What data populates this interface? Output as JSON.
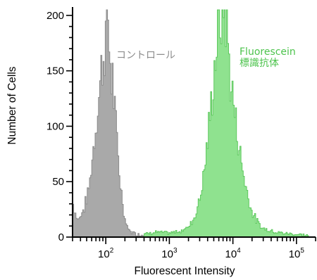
{
  "chart_data": {
    "type": "area",
    "xlabel": "Fluorescent Intensity",
    "ylabel": "Number of Cells",
    "x_scale": "log",
    "xlim": [
      30,
      200000
    ],
    "ylim": [
      0,
      205
    ],
    "y_ticks": [
      {
        "value": 0,
        "label": "0"
      },
      {
        "value": 50,
        "label": "50"
      },
      {
        "value": 100,
        "label": "100"
      },
      {
        "value": 150,
        "label": "150"
      },
      {
        "value": 200,
        "label": "200"
      }
    ],
    "x_ticks": [
      {
        "value": 100,
        "base": "10",
        "exp": "2"
      },
      {
        "value": 1000,
        "base": "10",
        "exp": "3"
      },
      {
        "value": 10000,
        "base": "10",
        "exp": "4"
      },
      {
        "value": 100000,
        "base": "10",
        "exp": "5"
      }
    ],
    "grid": false,
    "series": [
      {
        "label_lines": [
          "コントロール"
        ],
        "color": "#a9a9a9",
        "stroke": "#8c8c8c",
        "x": [
          30,
          35,
          40,
          45,
          50,
          55,
          60,
          65,
          70,
          75,
          80,
          85,
          90,
          95,
          100,
          105,
          110,
          115,
          120,
          125,
          130,
          140,
          150,
          160,
          170,
          180,
          190,
          200,
          220,
          250,
          300,
          400,
          600
        ],
        "y": [
          28,
          14,
          18,
          25,
          35,
          48,
          70,
          88,
          105,
          122,
          135,
          155,
          160,
          175,
          185,
          210,
          170,
          160,
          140,
          145,
          125,
          100,
          80,
          58,
          42,
          30,
          20,
          12,
          6,
          3,
          1,
          0,
          0
        ]
      },
      {
        "label_lines": [
          "Fluorescein",
          "標識抗体"
        ],
        "color": "#8fe28f",
        "stroke": "#5fc95f",
        "x": [
          400,
          600,
          1000,
          1500,
          2000,
          2500,
          3000,
          3500,
          4000,
          4500,
          5000,
          5500,
          6000,
          6500,
          7000,
          7500,
          8000,
          8500,
          9000,
          10000,
          11000,
          12000,
          13000,
          15000,
          17000,
          20000,
          25000,
          30000,
          40000,
          60000,
          100000,
          150000
        ],
        "y": [
          1,
          3,
          2,
          4,
          8,
          18,
          35,
          60,
          90,
          120,
          150,
          175,
          190,
          200,
          210,
          200,
          180,
          160,
          140,
          120,
          100,
          85,
          70,
          50,
          35,
          20,
          10,
          6,
          4,
          2,
          1,
          0
        ]
      }
    ]
  }
}
